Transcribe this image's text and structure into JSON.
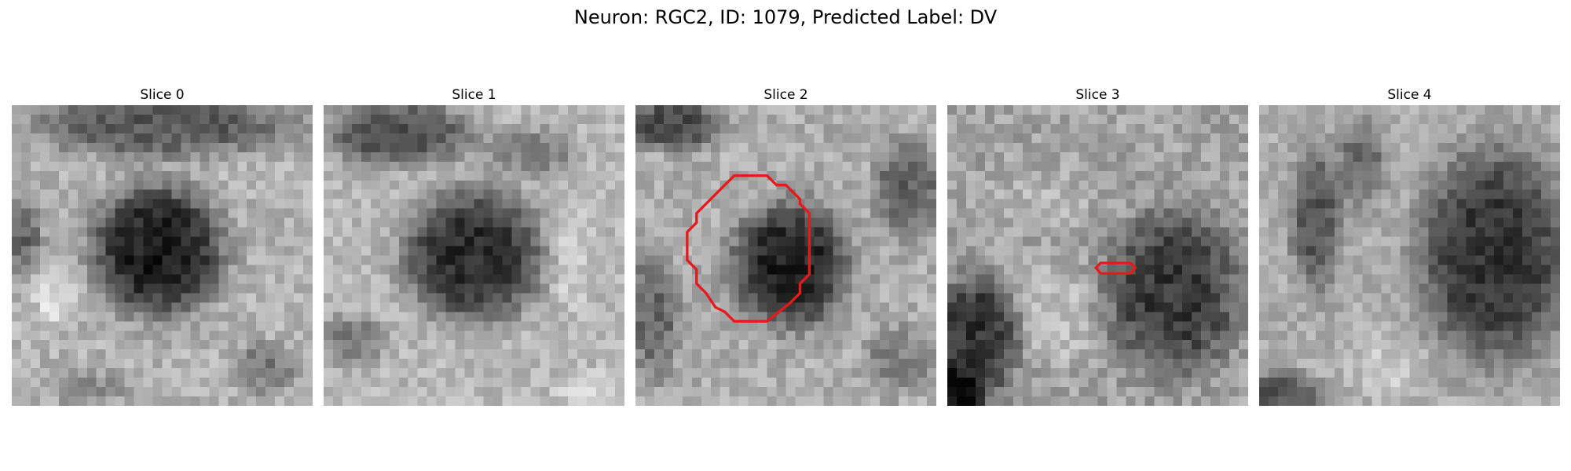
{
  "figure": {
    "title": "Neuron: RGC2, ID: 1079, Predicted Label: DV"
  },
  "outline_color": "#e41a1c",
  "panels": [
    {
      "title": "Slice 0",
      "has_outline": false
    },
    {
      "title": "Slice 1",
      "has_outline": false
    },
    {
      "title": "Slice 2",
      "has_outline": true
    },
    {
      "title": "Slice 3",
      "has_outline": true
    },
    {
      "title": "Slice 4",
      "has_outline": false
    }
  ]
}
